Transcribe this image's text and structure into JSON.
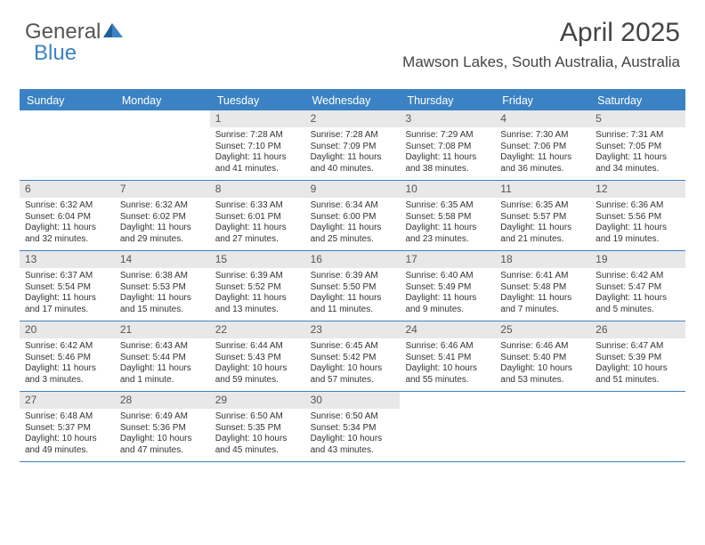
{
  "logo": {
    "part1": "General",
    "part2": "Blue"
  },
  "title": "April 2025",
  "subtitle": "Mawson Lakes, South Australia, Australia",
  "colors": {
    "accent": "#3b82c4",
    "daybar": "#e8e8e8",
    "text": "#333333",
    "title_text": "#444444",
    "logo_gray": "#555555"
  },
  "days_of_week": [
    "Sunday",
    "Monday",
    "Tuesday",
    "Wednesday",
    "Thursday",
    "Friday",
    "Saturday"
  ],
  "calendar": {
    "rows": [
      [
        null,
        null,
        {
          "n": "1",
          "sr": "7:28 AM",
          "ss": "7:10 PM",
          "dl": "11 hours and 41 minutes."
        },
        {
          "n": "2",
          "sr": "7:28 AM",
          "ss": "7:09 PM",
          "dl": "11 hours and 40 minutes."
        },
        {
          "n": "3",
          "sr": "7:29 AM",
          "ss": "7:08 PM",
          "dl": "11 hours and 38 minutes."
        },
        {
          "n": "4",
          "sr": "7:30 AM",
          "ss": "7:06 PM",
          "dl": "11 hours and 36 minutes."
        },
        {
          "n": "5",
          "sr": "7:31 AM",
          "ss": "7:05 PM",
          "dl": "11 hours and 34 minutes."
        }
      ],
      [
        {
          "n": "6",
          "sr": "6:32 AM",
          "ss": "6:04 PM",
          "dl": "11 hours and 32 minutes."
        },
        {
          "n": "7",
          "sr": "6:32 AM",
          "ss": "6:02 PM",
          "dl": "11 hours and 29 minutes."
        },
        {
          "n": "8",
          "sr": "6:33 AM",
          "ss": "6:01 PM",
          "dl": "11 hours and 27 minutes."
        },
        {
          "n": "9",
          "sr": "6:34 AM",
          "ss": "6:00 PM",
          "dl": "11 hours and 25 minutes."
        },
        {
          "n": "10",
          "sr": "6:35 AM",
          "ss": "5:58 PM",
          "dl": "11 hours and 23 minutes."
        },
        {
          "n": "11",
          "sr": "6:35 AM",
          "ss": "5:57 PM",
          "dl": "11 hours and 21 minutes."
        },
        {
          "n": "12",
          "sr": "6:36 AM",
          "ss": "5:56 PM",
          "dl": "11 hours and 19 minutes."
        }
      ],
      [
        {
          "n": "13",
          "sr": "6:37 AM",
          "ss": "5:54 PM",
          "dl": "11 hours and 17 minutes."
        },
        {
          "n": "14",
          "sr": "6:38 AM",
          "ss": "5:53 PM",
          "dl": "11 hours and 15 minutes."
        },
        {
          "n": "15",
          "sr": "6:39 AM",
          "ss": "5:52 PM",
          "dl": "11 hours and 13 minutes."
        },
        {
          "n": "16",
          "sr": "6:39 AM",
          "ss": "5:50 PM",
          "dl": "11 hours and 11 minutes."
        },
        {
          "n": "17",
          "sr": "6:40 AM",
          "ss": "5:49 PM",
          "dl": "11 hours and 9 minutes."
        },
        {
          "n": "18",
          "sr": "6:41 AM",
          "ss": "5:48 PM",
          "dl": "11 hours and 7 minutes."
        },
        {
          "n": "19",
          "sr": "6:42 AM",
          "ss": "5:47 PM",
          "dl": "11 hours and 5 minutes."
        }
      ],
      [
        {
          "n": "20",
          "sr": "6:42 AM",
          "ss": "5:46 PM",
          "dl": "11 hours and 3 minutes."
        },
        {
          "n": "21",
          "sr": "6:43 AM",
          "ss": "5:44 PM",
          "dl": "11 hours and 1 minute."
        },
        {
          "n": "22",
          "sr": "6:44 AM",
          "ss": "5:43 PM",
          "dl": "10 hours and 59 minutes."
        },
        {
          "n": "23",
          "sr": "6:45 AM",
          "ss": "5:42 PM",
          "dl": "10 hours and 57 minutes."
        },
        {
          "n": "24",
          "sr": "6:46 AM",
          "ss": "5:41 PM",
          "dl": "10 hours and 55 minutes."
        },
        {
          "n": "25",
          "sr": "6:46 AM",
          "ss": "5:40 PM",
          "dl": "10 hours and 53 minutes."
        },
        {
          "n": "26",
          "sr": "6:47 AM",
          "ss": "5:39 PM",
          "dl": "10 hours and 51 minutes."
        }
      ],
      [
        {
          "n": "27",
          "sr": "6:48 AM",
          "ss": "5:37 PM",
          "dl": "10 hours and 49 minutes."
        },
        {
          "n": "28",
          "sr": "6:49 AM",
          "ss": "5:36 PM",
          "dl": "10 hours and 47 minutes."
        },
        {
          "n": "29",
          "sr": "6:50 AM",
          "ss": "5:35 PM",
          "dl": "10 hours and 45 minutes."
        },
        {
          "n": "30",
          "sr": "6:50 AM",
          "ss": "5:34 PM",
          "dl": "10 hours and 43 minutes."
        },
        null,
        null,
        null
      ]
    ]
  },
  "field_labels": {
    "sunrise": "Sunrise: ",
    "sunset": "Sunset: ",
    "daylight": "Daylight: "
  }
}
